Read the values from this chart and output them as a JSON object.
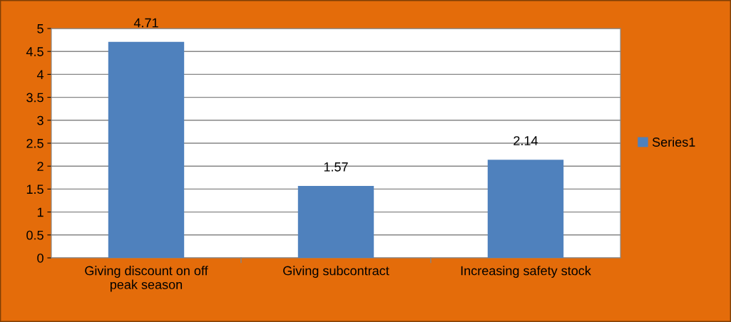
{
  "chart_data": {
    "type": "bar",
    "categories": [
      "Giving discount on off peak season",
      "Giving subcontract",
      "Increasing safety stock"
    ],
    "series": [
      {
        "name": "Series1",
        "color": "#4f81bd",
        "values": [
          4.71,
          1.57,
          2.14
        ]
      }
    ],
    "ylim": [
      0,
      5
    ],
    "yticks": [
      0,
      0.5,
      1,
      1.5,
      2,
      2.5,
      3,
      3.5,
      4,
      4.5,
      5
    ],
    "grid": "y",
    "legend": "right",
    "data_labels": true
  }
}
